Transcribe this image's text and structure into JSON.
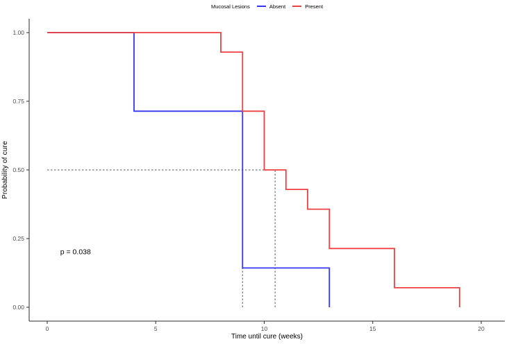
{
  "chart_data": {
    "type": "line",
    "subtype": "kaplan-meier-step",
    "title": "",
    "xlabel": "Time until cure (weeks)",
    "ylabel": "Probability of cure",
    "xlim": [
      -1,
      21
    ],
    "ylim": [
      -0.05,
      1.05
    ],
    "grid": false,
    "x_ticks": [
      0,
      5,
      10,
      15,
      20
    ],
    "x_tick_labels": [
      "0",
      "5",
      "10",
      "15",
      "20"
    ],
    "y_ticks": [
      0,
      0.25,
      0.5,
      0.75,
      1
    ],
    "y_tick_labels": [
      "0.00",
      "0.25",
      "0.50",
      "0.75",
      "1.00"
    ],
    "legend": {
      "title": "Mucosal Lesions",
      "position": "top-center",
      "entries": [
        {
          "label": "Absent",
          "color": "#3434ee"
        },
        {
          "label": "Present",
          "color": "#ee4040"
        }
      ]
    },
    "series": [
      {
        "name": "Absent",
        "color": "#3434ee",
        "step_points": [
          [
            0,
            1
          ],
          [
            4,
            1
          ],
          [
            4,
            0.714
          ],
          [
            9,
            0.714
          ],
          [
            9,
            0.143
          ],
          [
            13,
            0.143
          ],
          [
            13,
            0
          ]
        ]
      },
      {
        "name": "Present",
        "color": "#ee4040",
        "step_points": [
          [
            0,
            1
          ],
          [
            8,
            1
          ],
          [
            8,
            0.929
          ],
          [
            9,
            0.929
          ],
          [
            9,
            0.714
          ],
          [
            10,
            0.714
          ],
          [
            10,
            0.5
          ],
          [
            11,
            0.5
          ],
          [
            11,
            0.429
          ],
          [
            12,
            0.429
          ],
          [
            12,
            0.357
          ],
          [
            13,
            0.357
          ],
          [
            13,
            0.214
          ],
          [
            16,
            0.214
          ],
          [
            16,
            0.071
          ],
          [
            19,
            0.071
          ],
          [
            19,
            0
          ]
        ]
      }
    ],
    "median_lines": {
      "color": "#555555",
      "style": "dashed",
      "horizontal": {
        "y": 0.5,
        "x_from": 0,
        "x_to": 10.5
      },
      "vertical": [
        {
          "x": 9,
          "y_from": 0,
          "y_to": 0.5,
          "series": "Absent"
        },
        {
          "x": 10.5,
          "y_from": 0,
          "y_to": 0.5,
          "series": "Present"
        }
      ]
    },
    "annotations": [
      {
        "text": "p = 0.038",
        "x": 0.6,
        "y": 0.2,
        "align": "left"
      }
    ],
    "axis_color": "#2b2b2b",
    "tick_label_color": "#4d4d4d"
  }
}
